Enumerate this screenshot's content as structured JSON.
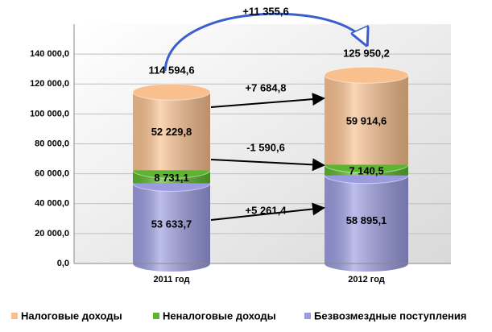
{
  "chart_data": {
    "type": "stacked-cylinder",
    "categories": [
      "2011 год",
      "2012 год"
    ],
    "series": [
      {
        "name": "Безвозмездные поступления",
        "color": "#9a9be0",
        "values": [
          53633.7,
          58895.1
        ],
        "value_labels": [
          "53 633,7",
          "58 895,1"
        ]
      },
      {
        "name": "Неналоговые доходы",
        "color": "#5cb531",
        "values": [
          8731.1,
          7140.5
        ],
        "value_labels": [
          "8 731,1",
          "7 140,5"
        ]
      },
      {
        "name": "Налоговые доходы",
        "color": "#f9c08e",
        "values": [
          52229.8,
          59914.6
        ],
        "value_labels": [
          "52 229,8",
          "59 914,6"
        ]
      }
    ],
    "totals": {
      "values": [
        114594.6,
        125950.2
      ],
      "value_labels": [
        "114 594,6",
        "125 950,2"
      ]
    },
    "annotations": [
      "+11 355,6",
      "+7 684,8",
      "-1 590,6",
      "+5 261,4"
    ],
    "ylim": [
      0,
      160000
    ],
    "yticks": [
      {
        "value": 0,
        "label": "0,0"
      },
      {
        "value": 20000,
        "label": "20 000,0"
      },
      {
        "value": 40000,
        "label": "40 000,0"
      },
      {
        "value": 60000,
        "label": "60 000,0"
      },
      {
        "value": 80000,
        "label": "80 000,0"
      },
      {
        "value": 100000,
        "label": "100 000,0"
      },
      {
        "value": 120000,
        "label": "120 000,0"
      },
      {
        "value": 140000,
        "label": "140 000,0"
      }
    ],
    "grid": true,
    "legend": "bottom"
  }
}
